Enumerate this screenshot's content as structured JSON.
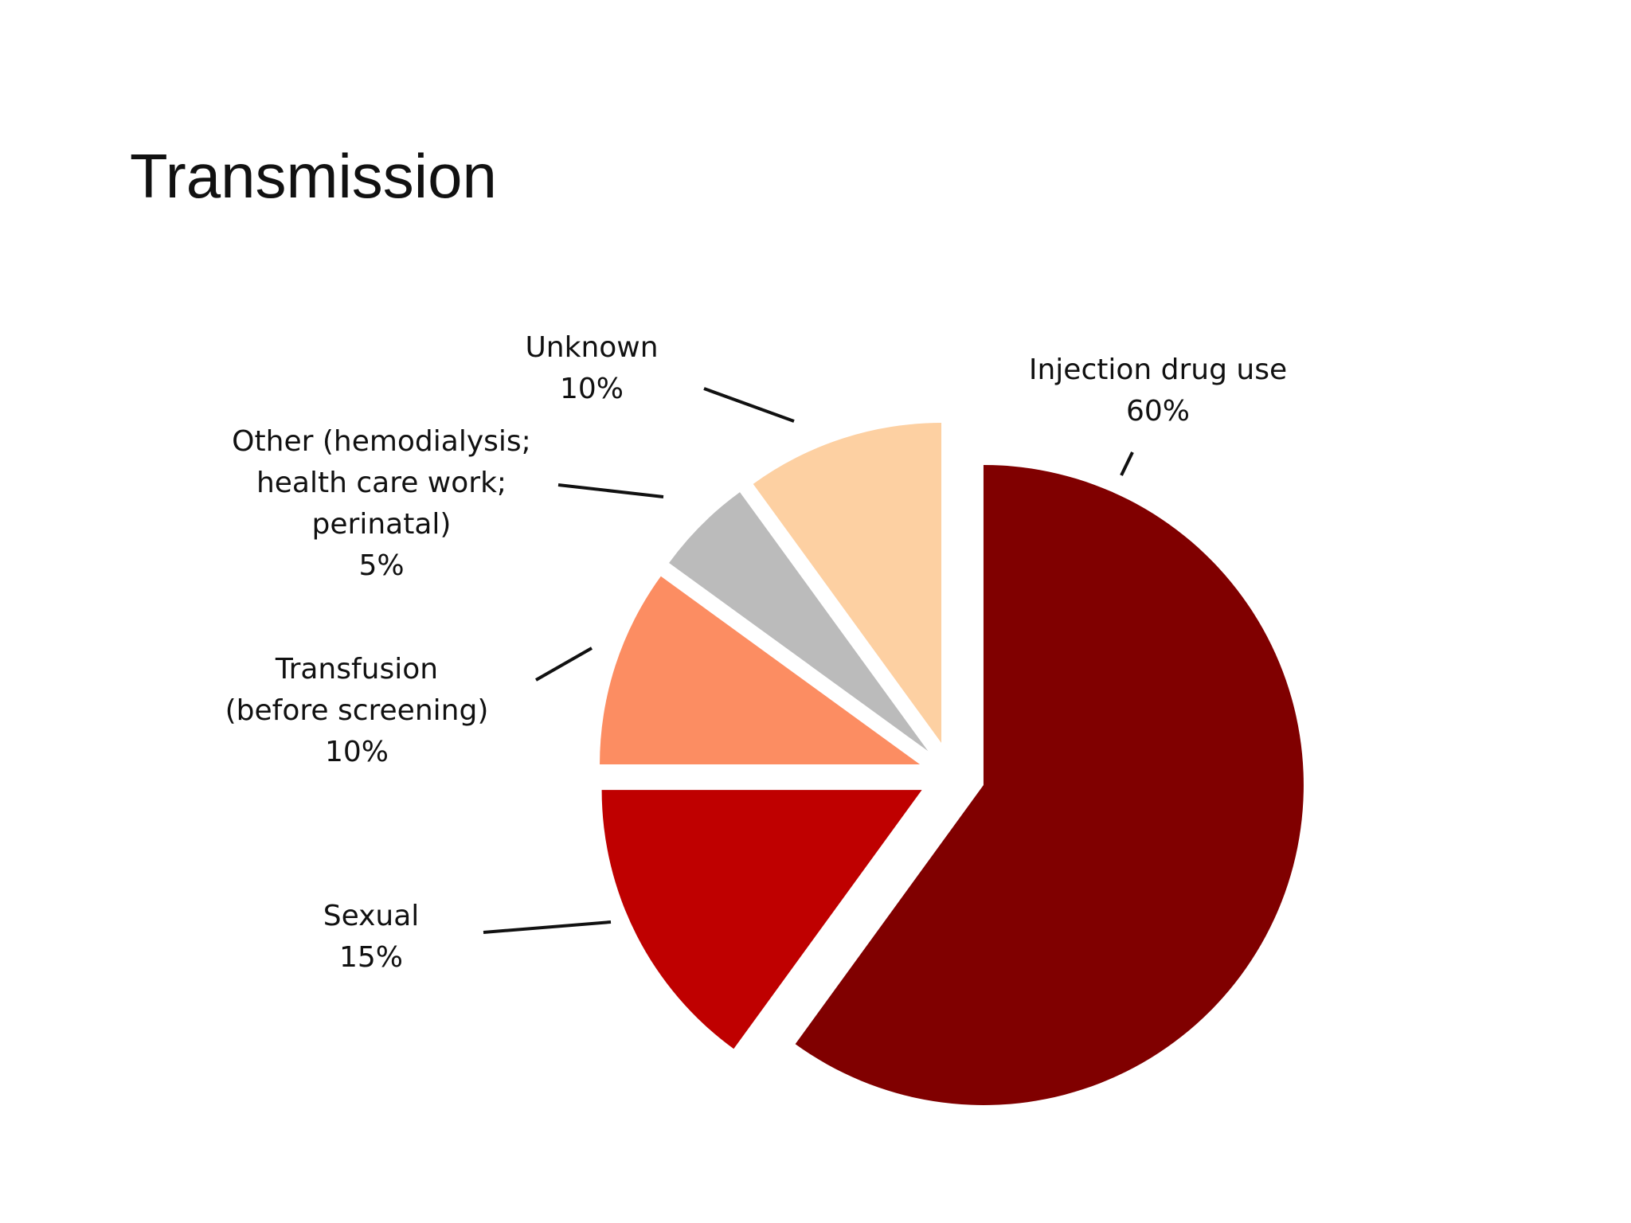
{
  "chart_data": {
    "type": "pie",
    "title": "Transmission",
    "categories": [
      "Injection drug use",
      "Sexual",
      "Transfusion\n(before screening)",
      "Other (hemodialysis;\nhealth care work;\nperinatal)",
      "Unknown"
    ],
    "values": [
      60,
      15,
      10,
      5,
      10
    ],
    "value_labels": [
      "60%",
      "15%",
      "10%",
      "5%",
      "10%"
    ],
    "colors": [
      "#800000",
      "#bf0000",
      "#fc8d62",
      "#bbbbbb",
      "#fdd0a2"
    ]
  }
}
